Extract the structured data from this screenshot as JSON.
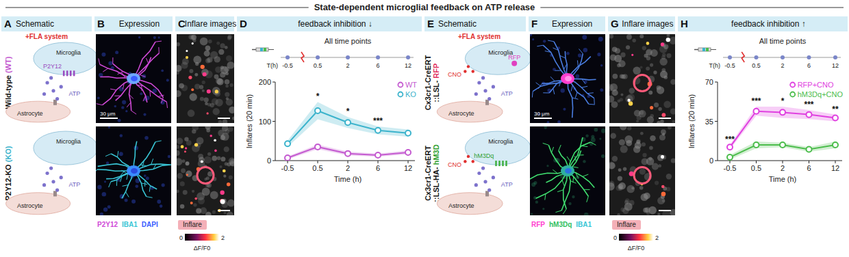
{
  "header": {
    "title": "State-dependent microglial feedback on ATP release"
  },
  "panels": {
    "A": {
      "letter": "A",
      "title": "Schematic",
      "subtitle": "+FLA system",
      "rows": [
        {
          "label": "Wild-type",
          "tag": "(WT)",
          "cell": "Microglia",
          "receptor": "P2Y12",
          "astrocyte": "Astrocyte",
          "atp": "ATP"
        },
        {
          "label": "P2Y12-KO",
          "tag": "(KO)",
          "cell": "Microglia",
          "astrocyte": "Astrocyte",
          "atp": "ATP"
        }
      ]
    },
    "B": {
      "letter": "B",
      "title": "Expression",
      "scale_bar": "30 μm",
      "channels": [
        "P2Y12",
        "IBA1",
        "DAPI"
      ]
    },
    "C": {
      "letter": "C",
      "title": "Inflare images",
      "legend": "Inflare",
      "colorbar": {
        "range": [
          0,
          2
        ],
        "label": "ΔF/F0"
      }
    },
    "E": {
      "letter": "E",
      "title": "Schematic",
      "subtitle": "+FLA system",
      "rows": [
        {
          "line1": "Cx3cr1-CreERT",
          "label": "::LSL-",
          "tag": "RFP",
          "drug": "CNO",
          "cell": "Microglia",
          "reporter": "RFP",
          "astrocyte": "Astrocyte",
          "atp": "ATP"
        },
        {
          "line1": "Cx3cr1-CreERT",
          "label": "::LSL-HA-",
          "tag": "hM3D",
          "drug": "CNO",
          "cell": "Microglia",
          "receptor": "hM3Dq",
          "astrocyte": "Astrocyte",
          "atp": "ATP"
        }
      ]
    },
    "F": {
      "letter": "F",
      "title": "Expression",
      "scale_bar": "30 μm",
      "channels": [
        "RFP",
        "hM3Dq",
        "IBA1"
      ]
    },
    "G": {
      "letter": "G",
      "title": "Inflare images",
      "legend": "Inflare",
      "colorbar": {
        "range": [
          0,
          2
        ],
        "label": "ΔF/F0"
      }
    }
  },
  "chart_data": [
    {
      "type": "line",
      "panel": "D",
      "title": "feedback inhibition ↓",
      "subtitle": "All time points",
      "timeline_label": "T(h)",
      "x_label": "Time (h)",
      "y_label": "Inflares (20 min)",
      "categories": [
        "-0.5",
        "0.5",
        "2",
        "6",
        "12"
      ],
      "series": [
        {
          "name": "WT",
          "color": "#c45ad0",
          "values": [
            7,
            35,
            18,
            14,
            21
          ],
          "errors": [
            4,
            6,
            5,
            4,
            5
          ]
        },
        {
          "name": "KO",
          "color": "#3bb3cc",
          "values": [
            43,
            127,
            97,
            77,
            70
          ],
          "errors": [
            8,
            22,
            14,
            10,
            9
          ]
        }
      ],
      "significance": [
        null,
        "*",
        "*",
        "***",
        null
      ],
      "ylim": [
        0,
        200
      ],
      "yticks": [
        0,
        100,
        200
      ],
      "legend": "upper right",
      "marker": "circle"
    },
    {
      "type": "line",
      "panel": "H",
      "title": "feedback inhibition ↑",
      "subtitle": "All time points",
      "timeline_label": "T(h)",
      "x_label": "Time (h)",
      "y_label": "Inflares (20 min)",
      "categories": [
        "-0.5",
        "0.5",
        "2",
        "6",
        "12"
      ],
      "series": [
        {
          "name": "RFP+CNO",
          "color": "#e040e0",
          "values": [
            12,
            44,
            43,
            41,
            38
          ],
          "errors": [
            2,
            4,
            5,
            4,
            3
          ]
        },
        {
          "name": "hM3Dq+CNO",
          "color": "#4cbd4c",
          "values": [
            3,
            14,
            14,
            10,
            14
          ],
          "errors": [
            2,
            3,
            2,
            2,
            3
          ]
        }
      ],
      "significance": [
        "***",
        "***",
        "*",
        "***",
        "**"
      ],
      "ylim": [
        0,
        70
      ],
      "yticks": [
        0,
        35,
        70
      ],
      "legend": "upper right",
      "marker": "circle"
    }
  ]
}
